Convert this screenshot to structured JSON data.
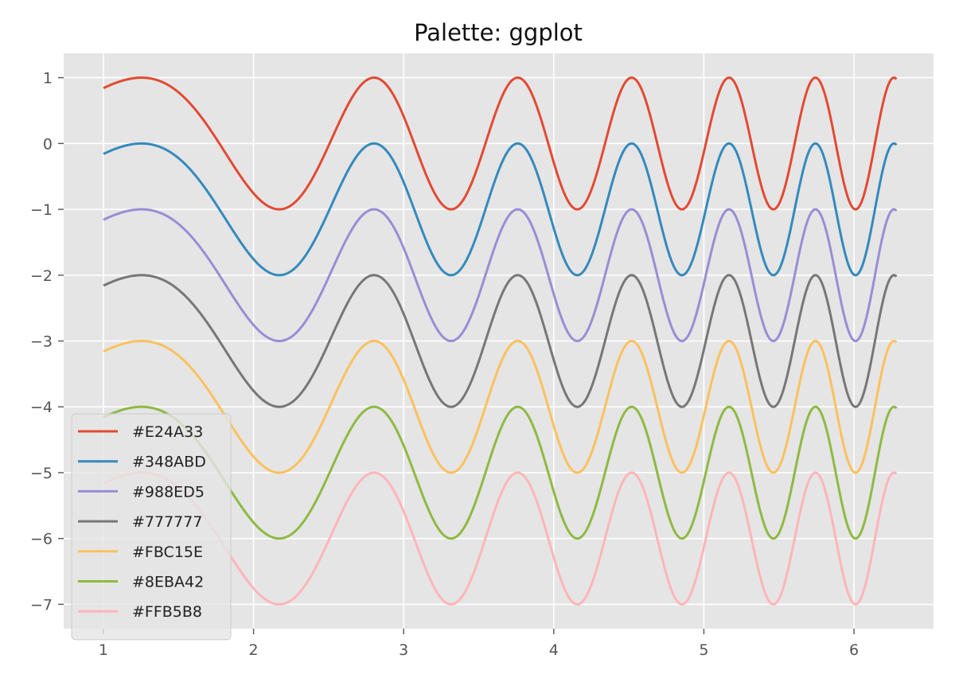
{
  "chart_data": {
    "type": "line",
    "title": "Palette: ggplot",
    "xlabel": "",
    "ylabel": "",
    "xlim": [
      0.735,
      6.53
    ],
    "ylim": [
      -7.37,
      1.37
    ],
    "x_ticks": [
      1,
      2,
      3,
      4,
      5,
      6
    ],
    "y_ticks": [
      1,
      0,
      -1,
      -2,
      -3,
      -4,
      -5,
      -6,
      -7
    ],
    "x_tick_labels": [
      "1",
      "2",
      "3",
      "4",
      "5",
      "6"
    ],
    "y_tick_labels": [
      "1",
      "0",
      "−1",
      "−2",
      "−3",
      "−4",
      "−5",
      "−6",
      "−7"
    ],
    "x_range": [
      1.0,
      6.2832
    ],
    "function": "y = sin(x^2) - offset",
    "grid": true,
    "legend_position": "lower-left",
    "background": "#E5E5E5",
    "series": [
      {
        "name": "#E24A33",
        "color": "#E24A33",
        "offset": 0
      },
      {
        "name": "#348ABD",
        "color": "#348ABD",
        "offset": 1
      },
      {
        "name": "#988ED5",
        "color": "#988ED5",
        "offset": 2
      },
      {
        "name": "#777777",
        "color": "#777777",
        "offset": 3
      },
      {
        "name": "#FBC15E",
        "color": "#FBC15E",
        "offset": 4
      },
      {
        "name": "#8EBA42",
        "color": "#8EBA42",
        "offset": 5
      },
      {
        "name": "#FFB5B8",
        "color": "#FFB5B8",
        "offset": 6
      }
    ]
  }
}
